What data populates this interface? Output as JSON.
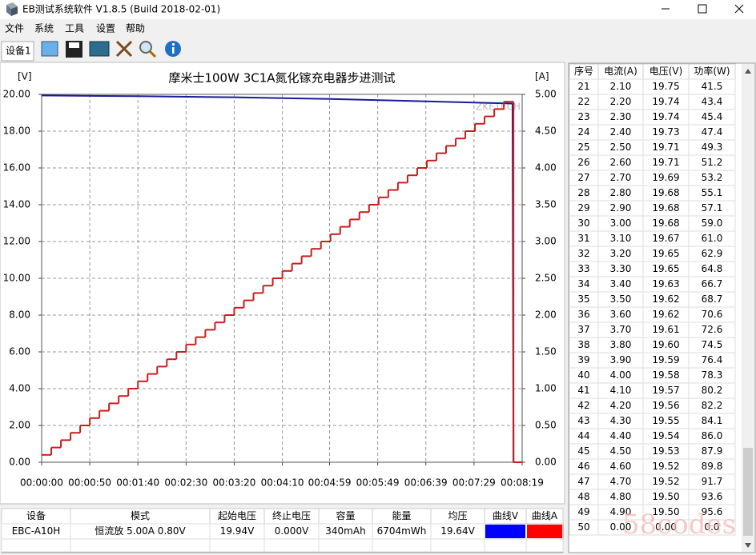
{
  "window": {
    "title": "EB测试系统软件 V1.8.5 (Build 2018-02-01)",
    "menu": [
      "文件",
      "系统",
      "工具",
      "设置",
      "帮助"
    ],
    "tab": "设备1"
  },
  "chart_data": {
    "type": "line",
    "title": "摩米士100W 3C1A氮化镓充电器步进测试",
    "y_label": "[V]",
    "y2_label": "[A]",
    "annotation": "ZKETECH",
    "xlim": [
      0,
      499
    ],
    "xticks": [
      {
        "value": 0,
        "label": "00:00:00"
      },
      {
        "value": 50,
        "label": "00:00:50"
      },
      {
        "value": 100,
        "label": "00:01:40"
      },
      {
        "value": 150,
        "label": "00:02:30"
      },
      {
        "value": 200,
        "label": "00:03:20"
      },
      {
        "value": 250,
        "label": "00:04:10"
      },
      {
        "value": 299,
        "label": "00:04:59"
      },
      {
        "value": 349,
        "label": "00:05:49"
      },
      {
        "value": 399,
        "label": "00:06:39"
      },
      {
        "value": 449,
        "label": "00:07:29"
      },
      {
        "value": 499,
        "label": "00:08:19"
      }
    ],
    "ylim": [
      0,
      20
    ],
    "yticks": [
      {
        "value": 0,
        "label": "0.00"
      },
      {
        "value": 2,
        "label": "2.00"
      },
      {
        "value": 4,
        "label": "4.00"
      },
      {
        "value": 6,
        "label": "6.00"
      },
      {
        "value": 8,
        "label": "8.00"
      },
      {
        "value": 10,
        "label": "10.00"
      },
      {
        "value": 12,
        "label": "12.00"
      },
      {
        "value": 14,
        "label": "14.00"
      },
      {
        "value": 16,
        "label": "16.00"
      },
      {
        "value": 18,
        "label": "18.00"
      },
      {
        "value": 20,
        "label": "20.00"
      }
    ],
    "y2lim": [
      0,
      5
    ],
    "y2ticks": [
      {
        "value": 0,
        "label": "0.00"
      },
      {
        "value": 0.5,
        "label": "0.50"
      },
      {
        "value": 1,
        "label": "1.00"
      },
      {
        "value": 1.5,
        "label": "1.50"
      },
      {
        "value": 2,
        "label": "2.00"
      },
      {
        "value": 2.5,
        "label": "2.50"
      },
      {
        "value": 3,
        "label": "3.00"
      },
      {
        "value": 3.5,
        "label": "3.50"
      },
      {
        "value": 4,
        "label": "4.00"
      },
      {
        "value": 4.5,
        "label": "4.50"
      },
      {
        "value": 5,
        "label": "5.00"
      }
    ],
    "grid": true,
    "series": [
      {
        "color": "#1a1a9a",
        "x": [
          0,
          100,
          200,
          300,
          400,
          489,
          490
        ],
        "values": [
          19.94,
          19.9,
          19.84,
          19.75,
          19.62,
          19.5,
          0
        ]
      },
      {
        "color": "#c81e1e",
        "axis": "y2",
        "step": true,
        "x": [
          0,
          10,
          20,
          30,
          40,
          50,
          60,
          70,
          80,
          90,
          100,
          110,
          120,
          130,
          140,
          150,
          160,
          170,
          180,
          190,
          200,
          210,
          220,
          230,
          240,
          250,
          260,
          270,
          280,
          290,
          300,
          310,
          320,
          330,
          340,
          350,
          360,
          370,
          380,
          390,
          400,
          410,
          420,
          430,
          440,
          450,
          460,
          470,
          480,
          490
        ],
        "values": [
          0.1,
          0.2,
          0.3,
          0.4,
          0.5,
          0.6,
          0.7,
          0.8,
          0.9,
          1.0,
          1.1,
          1.2,
          1.3,
          1.4,
          1.5,
          1.6,
          1.7,
          1.8,
          1.9,
          2.0,
          2.1,
          2.2,
          2.3,
          2.4,
          2.5,
          2.6,
          2.7,
          2.8,
          2.9,
          3.0,
          3.1,
          3.2,
          3.3,
          3.4,
          3.5,
          3.6,
          3.7,
          3.8,
          3.9,
          4.0,
          4.1,
          4.2,
          4.3,
          4.4,
          4.5,
          4.6,
          4.7,
          4.8,
          4.9,
          0
        ]
      }
    ]
  },
  "summary_table": {
    "headers": [
      "设备",
      "模式",
      "起始电压",
      "终止电压",
      "容量",
      "能量",
      "均压",
      "曲线V",
      "曲线A"
    ],
    "row": [
      "EBC-A10H",
      "恒流放 5.00A 0.80V",
      "19.94V",
      "0.000V",
      "340mAh",
      "6704mWh",
      "19.64V"
    ],
    "swatch_colors": [
      "#0000ff",
      "#ff0000"
    ]
  },
  "readings_table": {
    "headers": [
      "序号",
      "电流(A)",
      "电压(V)",
      "功率(W)"
    ],
    "rows": [
      [
        "21",
        "2.10",
        "19.75",
        "41.5"
      ],
      [
        "22",
        "2.20",
        "19.74",
        "43.4"
      ],
      [
        "23",
        "2.30",
        "19.74",
        "45.4"
      ],
      [
        "24",
        "2.40",
        "19.73",
        "47.4"
      ],
      [
        "25",
        "2.50",
        "19.71",
        "49.3"
      ],
      [
        "26",
        "2.60",
        "19.71",
        "51.2"
      ],
      [
        "27",
        "2.70",
        "19.69",
        "53.2"
      ],
      [
        "28",
        "2.80",
        "19.68",
        "55.1"
      ],
      [
        "29",
        "2.90",
        "19.68",
        "57.1"
      ],
      [
        "30",
        "3.00",
        "19.68",
        "59.0"
      ],
      [
        "31",
        "3.10",
        "19.67",
        "61.0"
      ],
      [
        "32",
        "3.20",
        "19.65",
        "62.9"
      ],
      [
        "33",
        "3.30",
        "19.65",
        "64.8"
      ],
      [
        "34",
        "3.40",
        "19.63",
        "66.7"
      ],
      [
        "35",
        "3.50",
        "19.62",
        "68.7"
      ],
      [
        "36",
        "3.60",
        "19.62",
        "70.6"
      ],
      [
        "37",
        "3.70",
        "19.61",
        "72.6"
      ],
      [
        "38",
        "3.80",
        "19.60",
        "74.5"
      ],
      [
        "39",
        "3.90",
        "19.59",
        "76.4"
      ],
      [
        "40",
        "4.00",
        "19.58",
        "78.3"
      ],
      [
        "41",
        "4.10",
        "19.57",
        "80.2"
      ],
      [
        "42",
        "4.20",
        "19.56",
        "82.2"
      ],
      [
        "43",
        "4.30",
        "19.55",
        "84.1"
      ],
      [
        "44",
        "4.40",
        "19.54",
        "86.0"
      ],
      [
        "45",
        "4.50",
        "19.53",
        "87.9"
      ],
      [
        "46",
        "4.60",
        "19.52",
        "89.8"
      ],
      [
        "47",
        "4.70",
        "19.52",
        "91.7"
      ],
      [
        "48",
        "4.80",
        "19.50",
        "93.6"
      ],
      [
        "49",
        "4.90",
        "19.50",
        "95.6"
      ],
      [
        "50",
        "0.00",
        "0.00",
        "0.0"
      ]
    ]
  },
  "watermark": "58codes"
}
